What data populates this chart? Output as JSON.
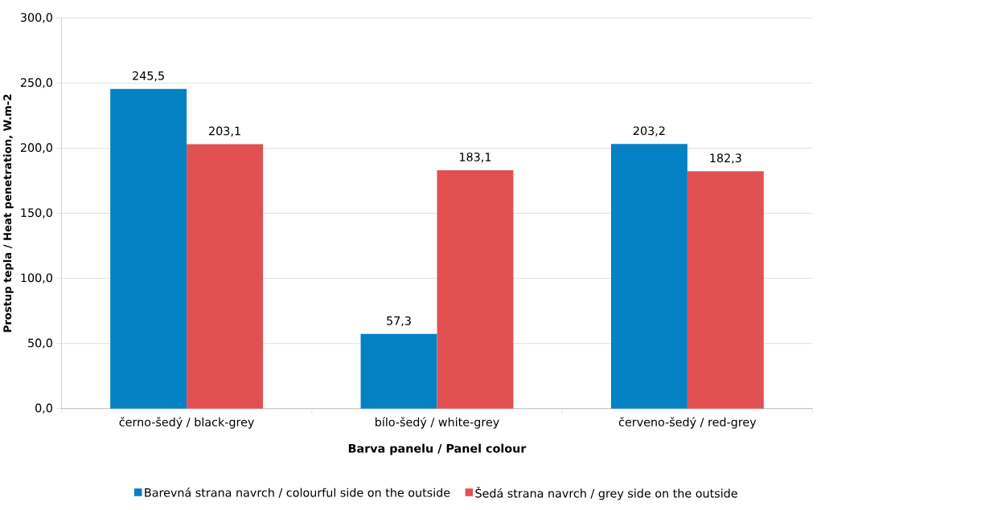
{
  "chart_data": {
    "type": "bar",
    "xlabel": "Barva panelu / Panel colour",
    "ylabel": "Prostup tepla / Heat penetration,  W.m-2",
    "categories": [
      "černo-šedý / black-grey",
      "bílo-šedý / white-grey",
      "červeno-šedý / red-grey"
    ],
    "series": [
      {
        "name": "Barevná strana navrch / colourful side on the outside",
        "color": "#0481c3",
        "values": [
          245.5,
          57.3,
          203.2
        ],
        "value_labels": [
          "245,5",
          "57,3",
          "203,2"
        ]
      },
      {
        "name": "Šedá strana navrch / grey side on the outside",
        "color": "#e15152",
        "values": [
          203.1,
          183.1,
          182.3
        ],
        "value_labels": [
          "203,1",
          "183,1",
          "182,3"
        ]
      }
    ],
    "ylim": [
      0,
      300
    ],
    "yticks": [
      {
        "value": 0,
        "label": "0,0"
      },
      {
        "value": 50,
        "label": "50,0"
      },
      {
        "value": 100,
        "label": "100,0"
      },
      {
        "value": 150,
        "label": "150,0"
      },
      {
        "value": 200,
        "label": "200,0"
      },
      {
        "value": 250,
        "label": "250,0"
      },
      {
        "value": 300,
        "label": "300,0"
      }
    ],
    "grid": "y",
    "legend": "bottom"
  }
}
